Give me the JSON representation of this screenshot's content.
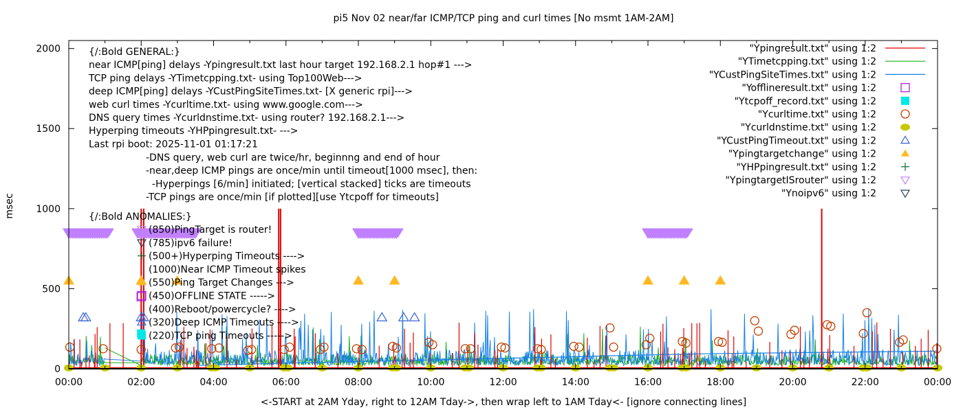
{
  "chart_data": {
    "type": "line",
    "title": "pi5 Nov 02  near/far ICMP/TCP ping and curl times [No msmt 1AM-2AM]",
    "xlabel": "<-START at 2AM Yday, right to 12AM Tday->, then wrap left to 1AM Tday<- [ignore connecting lines]",
    "ylabel": "msec",
    "xlim_hours": [
      0,
      24
    ],
    "ylim": [
      0,
      2050
    ],
    "grid": false,
    "legend_position": "top-right",
    "x_ticks": [
      "00:00",
      "02:00",
      "04:00",
      "06:00",
      "08:00",
      "10:00",
      "12:00",
      "14:00",
      "16:00",
      "18:00",
      "20:00",
      "22:00",
      "00:00"
    ],
    "y_ticks": [
      "0",
      "500",
      "1000",
      "1500",
      "2000"
    ],
    "y_tick_values": [
      0,
      500,
      1000,
      1500,
      2000
    ],
    "legend": [
      {
        "label": "\"Ypingresult.txt\" using 1:2",
        "marker": "line",
        "color": "#e00000"
      },
      {
        "label": "\"YTimetcpping.txt\" using 1:2",
        "marker": "line",
        "color": "#16b016"
      },
      {
        "label": "\"YCustPingSiteTimes.txt\" using 1:2",
        "marker": "line",
        "color": "#1580e8"
      },
      {
        "label": "\"Yofflineresult.txt\" using 1:2",
        "marker": "open-square",
        "color": "#b020d8"
      },
      {
        "label": "\"Ytcpoff_record.txt\" using 1:2",
        "marker": "filled-square",
        "color": "#00e8e8"
      },
      {
        "label": "\"Ycurltime.txt\" using 1:2",
        "marker": "open-circle",
        "color": "#c04000"
      },
      {
        "label": "\"Ycurldnstime.txt\" using 1:2",
        "marker": "filled-circle",
        "color": "#c8c800"
      },
      {
        "label": "\"YCustPingTimeout.txt\" using 1:2",
        "marker": "open-triangle-up",
        "color": "#3a64d8"
      },
      {
        "label": "\"Ypingtargetchange\" using 1:2",
        "marker": "filled-triangle-up",
        "color": "#ffb820"
      },
      {
        "label": "\"YHPpingresult.txt\" using 1:2",
        "marker": "plus",
        "color": "#006a30"
      },
      {
        "label": "\"YpingtargetISrouter\" using 1:2",
        "marker": "open-triangle-down",
        "color": "#c080ff"
      },
      {
        "label": "\"Ynoipv6\" using 1:2",
        "marker": "open-triangle-down",
        "color": "#204060"
      }
    ],
    "annotations": {
      "general": [
        "{/:Bold GENERAL:}",
        "near ICMP[ping] delays -Ypingresult.txt last hour target 192.168.2.1 hop#1 --->",
        "TCP ping delays -YTimetcpping.txt- using Top100Web--->",
        "deep ICMP[ping] delays -YCustPingSiteTimes.txt- [X generic rpi]--->",
        "web curl times -Ycurltime.txt- using www.google.com--->",
        "DNS query times -Ycurldnstime.txt- using router? 192.168.2.1--->",
        "Hyperping timeouts -YHPpingresult.txt- --->",
        "Last rpi boot: 2025-11-01 01:17:21"
      ],
      "notes": [
        "-DNS query, web curl are twice/hr, beginnng and end of hour",
        "-near,deep ICMP pings are once/min until timeout[1000 msec], then:",
        "  -Hyperpings [6/min] initiated; [vertical stacked] ticks are timeouts",
        "-TCP pings are once/min [if plotted][use Ytcpoff for timeouts]"
      ],
      "anomalies_title": "{/:Bold ANOMALIES:}",
      "anomalies": [
        {
          "text": "(850)PingTarget is router!",
          "marker": "open-triangle-down",
          "color": "#c080ff"
        },
        {
          "text": "(785)ipv6 failure!",
          "marker": "open-triangle-down",
          "color": "#204060"
        },
        {
          "text": "(500+)Hyperping Timeouts ---->",
          "marker": "plus",
          "color": "#006a30"
        },
        {
          "text": "(1000)Near ICMP Timeout spikes",
          "marker": "none",
          "color": ""
        },
        {
          "text": "(550)Ping Target Changes --->",
          "marker": "filled-triangle-up",
          "color": "#ffb820"
        },
        {
          "text": "(450)OFFLINE STATE ----->",
          "marker": "open-square",
          "color": "#b020d8"
        },
        {
          "text": "(400)Reboot/powercycle? ---->",
          "marker": "none",
          "color": ""
        },
        {
          "text": "(320)Deep ICMP Timeouts ---->",
          "marker": "open-triangle-up",
          "color": "#3a64d8"
        },
        {
          "text": "(220)TCP ping Timeouts ----->",
          "marker": "filled-square",
          "color": "#00e8e8"
        }
      ]
    },
    "series": {
      "ping_target_is_router": {
        "y": 850,
        "ranges_hours": [
          [
            0.0,
            1.1
          ],
          [
            1.9,
            3.5
          ],
          [
            8.0,
            9.1
          ],
          [
            16.0,
            17.1
          ]
        ]
      },
      "ping_target_change": {
        "y": 550,
        "x_hours": [
          0.0,
          2.0,
          3.0,
          8.0,
          9.0,
          16.0,
          17.0,
          18.0
        ]
      },
      "cust_ping_timeout": {
        "y": 320,
        "x_hours": [
          0.4,
          0.47,
          2.0,
          2.07,
          8.65,
          9.25,
          9.55
        ]
      },
      "offline_state": {
        "y": 450,
        "x_hours": [
          2.0
        ]
      },
      "tcp_ping_timeouts": {
        "y": 220,
        "x_hours": [
          2.0
        ]
      },
      "near_icmp_timeout_spikes": [
        {
          "x": 2.0,
          "y": 1000
        },
        {
          "x": 2.07,
          "y": 1000
        },
        {
          "x": 5.8,
          "y": 1000
        },
        {
          "x": 5.85,
          "y": 1000
        },
        {
          "x": 20.8,
          "y": 1000
        }
      ],
      "curl_times": [
        {
          "x": 0.03,
          "y": 135
        },
        {
          "x": 0.95,
          "y": 125
        },
        {
          "x": 2.0,
          "y": 120
        },
        {
          "x": 2.95,
          "y": 130
        },
        {
          "x": 3.05,
          "y": 135
        },
        {
          "x": 3.95,
          "y": 125
        },
        {
          "x": 4.15,
          "y": 130
        },
        {
          "x": 4.95,
          "y": 115
        },
        {
          "x": 5.05,
          "y": 120
        },
        {
          "x": 5.95,
          "y": 120
        },
        {
          "x": 6.1,
          "y": 135
        },
        {
          "x": 6.95,
          "y": 120
        },
        {
          "x": 7.05,
          "y": 135
        },
        {
          "x": 7.95,
          "y": 125
        },
        {
          "x": 8.1,
          "y": 120
        },
        {
          "x": 8.95,
          "y": 140
        },
        {
          "x": 9.05,
          "y": 130
        },
        {
          "x": 9.95,
          "y": 165
        },
        {
          "x": 10.05,
          "y": 150
        },
        {
          "x": 10.95,
          "y": 125
        },
        {
          "x": 11.1,
          "y": 125
        },
        {
          "x": 11.95,
          "y": 135
        },
        {
          "x": 12.05,
          "y": 130
        },
        {
          "x": 12.95,
          "y": 125
        },
        {
          "x": 13.05,
          "y": 120
        },
        {
          "x": 13.95,
          "y": 140
        },
        {
          "x": 14.1,
          "y": 135
        },
        {
          "x": 14.95,
          "y": 255
        },
        {
          "x": 15.05,
          "y": 135
        },
        {
          "x": 15.95,
          "y": 150
        },
        {
          "x": 16.05,
          "y": 190
        },
        {
          "x": 16.95,
          "y": 170
        },
        {
          "x": 17.05,
          "y": 160
        },
        {
          "x": 17.95,
          "y": 170
        },
        {
          "x": 18.05,
          "y": 165
        },
        {
          "x": 18.95,
          "y": 300
        },
        {
          "x": 19.05,
          "y": 235
        },
        {
          "x": 19.95,
          "y": 215
        },
        {
          "x": 20.05,
          "y": 240
        },
        {
          "x": 20.95,
          "y": 275
        },
        {
          "x": 21.05,
          "y": 265
        },
        {
          "x": 21.95,
          "y": 220
        },
        {
          "x": 22.05,
          "y": 350
        },
        {
          "x": 22.95,
          "y": 165
        },
        {
          "x": 23.05,
          "y": 180
        },
        {
          "x": 23.98,
          "y": 125
        }
      ],
      "dns_times_y": 5,
      "dns_times_x_hours": [
        0.0,
        1.0,
        2.0,
        3.0,
        3.95,
        4.05,
        5.0,
        5.95,
        6.05,
        7.0,
        8.0,
        8.95,
        9.05,
        10.0,
        10.95,
        11.05,
        12.0,
        12.95,
        13.05,
        14.0,
        14.95,
        15.05,
        16.0,
        16.95,
        17.05,
        18.0,
        19.0,
        20.0,
        21.0,
        21.95,
        22.05,
        23.0,
        24.0
      ],
      "ping_result_baseline_msec": 5,
      "tcp_ping_typical_msec": [
        20,
        90
      ],
      "cust_ping_typical_msec": [
        20,
        120
      ],
      "cust_ping_slow_trend": [
        {
          "x": 3.5,
          "y": 20
        },
        {
          "x": 6.0,
          "y": 35
        },
        {
          "x": 10.0,
          "y": 55
        },
        {
          "x": 14.0,
          "y": 75
        },
        {
          "x": 15.7,
          "y": 85
        },
        {
          "x": 18.0,
          "y": 95
        },
        {
          "x": 22.0,
          "y": 105
        },
        {
          "x": 24.0,
          "y": 110
        }
      ],
      "tcp_connecting_line": [
        {
          "x": 1.0,
          "y": 130
        },
        {
          "x": 2.0,
          "y": 20
        }
      ]
    }
  }
}
